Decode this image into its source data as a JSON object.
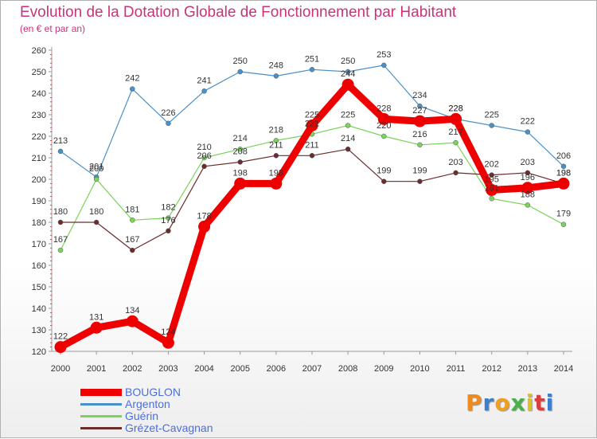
{
  "title": "Evolution de la Dotation Globale de Fonctionnement par Habitant",
  "subtitle": "(en € et par an)",
  "logo": "Proxiti",
  "chart_data": {
    "type": "line",
    "categories": [
      "2000",
      "2001",
      "2002",
      "2003",
      "2004",
      "2005",
      "2006",
      "2007",
      "2008",
      "2009",
      "2010",
      "2011",
      "2012",
      "2013",
      "2014"
    ],
    "ylim": [
      120,
      260
    ],
    "yticks": [
      120,
      130,
      140,
      150,
      160,
      170,
      180,
      190,
      200,
      210,
      220,
      230,
      240,
      250,
      260
    ],
    "grid": false,
    "legend_position": "bottom-left",
    "series": [
      {
        "name": "Argenton",
        "color": "#4a90c8",
        "values": [
          213,
          201,
          242,
          226,
          241,
          250,
          248,
          251,
          250,
          253,
          234,
          228,
          225,
          222,
          206
        ]
      },
      {
        "name": "Guérin",
        "color": "#7ad35a",
        "values": [
          167,
          200,
          181,
          182,
          210,
          214,
          218,
          221,
          225,
          220,
          216,
          217,
          191,
          188,
          179
        ]
      },
      {
        "name": "Grézet-Cavagnan",
        "color": "#6b2c2c",
        "values": [
          180,
          180,
          167,
          176,
          206,
          208,
          211,
          211,
          214,
          199,
          199,
          203,
          202,
          203,
          198
        ]
      },
      {
        "name": "BOUGLON",
        "color": "#ee0000",
        "values": [
          122,
          131,
          134,
          124,
          178,
          198,
          198,
          225,
          244,
          228,
          227,
          228,
          195,
          196,
          198
        ]
      }
    ]
  },
  "legend": [
    {
      "name": "BOUGLON",
      "color": "#ee0000",
      "text_color": "#4a6fe0"
    },
    {
      "name": "Argenton",
      "color": "#4a90c8",
      "text_color": "#4a6fe0"
    },
    {
      "name": "Guérin",
      "color": "#7ad35a",
      "text_color": "#4a6fe0"
    },
    {
      "name": "Grézet-Cavagnan",
      "color": "#6b2c2c",
      "text_color": "#4a6fe0"
    }
  ]
}
